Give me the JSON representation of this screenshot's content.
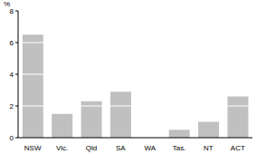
{
  "chart_data": {
    "type": "bar",
    "y_label": "%",
    "categories": [
      "NSW",
      "Vic.",
      "Qld",
      "SA",
      "WA",
      "Tas.",
      "NT",
      "ACT"
    ],
    "values": [
      6.5,
      1.5,
      2.3,
      2.9,
      0,
      0.5,
      1.0,
      2.6
    ],
    "color": "#c0c0c0",
    "ylim": [
      0,
      8
    ],
    "yticks": [
      0,
      2,
      4,
      6,
      8
    ],
    "grid": true
  }
}
